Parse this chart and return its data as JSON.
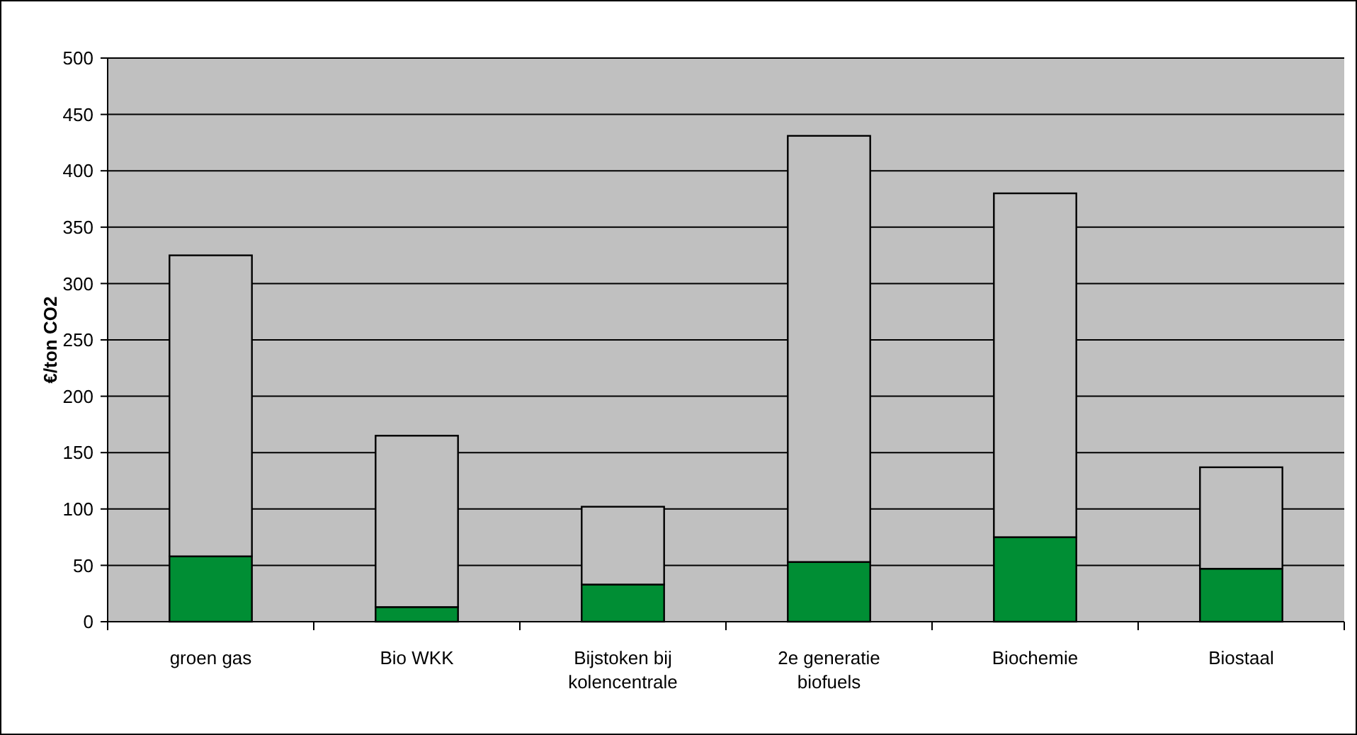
{
  "chart_data": {
    "type": "bar",
    "ylabel": "€/ton CO2",
    "categories": [
      "groen gas",
      "Bio WKK",
      "Bijstoken bij kolencentrale",
      "2e generatie biofuels",
      "Biochemie",
      "Biostaal"
    ],
    "series": [
      {
        "color": "#008e34",
        "values": [
          58,
          13,
          33,
          53,
          75,
          47
        ]
      },
      {
        "color": "#c0c0c0",
        "values": [
          267,
          152,
          69,
          378,
          305,
          90
        ]
      }
    ],
    "stacked": true,
    "ylim": [
      0,
      500
    ],
    "yticks": [
      0,
      50,
      100,
      150,
      200,
      250,
      300,
      350,
      400,
      450,
      500
    ],
    "grid": "y"
  }
}
